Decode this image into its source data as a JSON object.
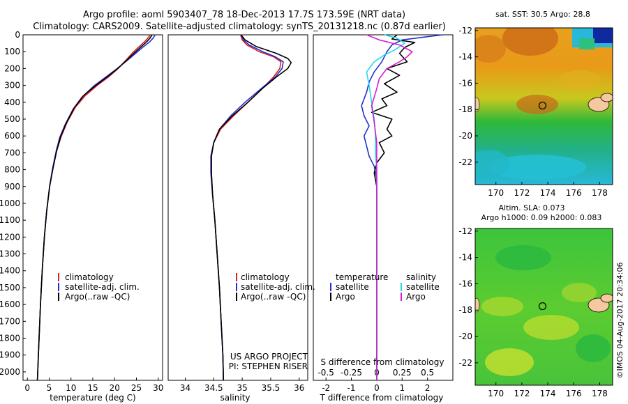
{
  "title": {
    "line1": "Argo profile: aoml 5903407_78 18-Dec-2013 17.7S 173.59E (NRT data)",
    "line2": "Climatology: CARS2009. Satellite-adjusted climatology: synTS_20131218.nc (0.87d earlier)"
  },
  "colors": {
    "climatology": "#e02020",
    "satellite": "#1f2fd0",
    "argo": "#000000",
    "salinity_satellite": "#22d8e8",
    "salinity_argo": "#d020d0"
  },
  "depth_axis": {
    "ylim": [
      0,
      2050
    ],
    "ticks": [
      0,
      100,
      200,
      300,
      400,
      500,
      600,
      700,
      800,
      900,
      1000,
      1100,
      1200,
      1300,
      1400,
      1500,
      1600,
      1700,
      1800,
      1900,
      2000
    ]
  },
  "legend": {
    "climatology": "climatology",
    "satellite_clim": "satellite-adj. clim.",
    "argo": "Argo(..raw -QC)",
    "diff_header_temperature": "temperature",
    "diff_header_salinity": "salinity",
    "diff_satellite": "satellite",
    "diff_argo": "Argo"
  },
  "credits": {
    "project": "US ARGO PROJECT",
    "pi": "PI: STEPHEN RISER"
  },
  "chart_data": [
    {
      "id": "temperature",
      "type": "line",
      "xlabel": "temperature (deg C)",
      "xlim": [
        -1,
        31
      ],
      "xticks": [
        0,
        5,
        10,
        15,
        20,
        25,
        30
      ],
      "ylabel": "depth",
      "ylim": [
        0,
        2050
      ],
      "series": [
        {
          "name": "climatology",
          "color": "#e02020",
          "points": [
            [
              28.2,
              0
            ],
            [
              27.6,
              20
            ],
            [
              26.9,
              40
            ],
            [
              25.4,
              75
            ],
            [
              24.0,
              110
            ],
            [
              22.6,
              150
            ],
            [
              20.8,
              200
            ],
            [
              18.6,
              250
            ],
            [
              16.0,
              300
            ],
            [
              13.3,
              360
            ],
            [
              11.0,
              430
            ],
            [
              9.1,
              520
            ],
            [
              7.8,
              600
            ],
            [
              6.8,
              680
            ],
            [
              5.9,
              780
            ],
            [
              5.1,
              900
            ],
            [
              4.4,
              1050
            ],
            [
              3.9,
              1200
            ],
            [
              3.4,
              1400
            ],
            [
              3.0,
              1600
            ],
            [
              2.6,
              1850
            ],
            [
              2.3,
              2050
            ]
          ]
        },
        {
          "name": "satellite-adj. clim.",
          "color": "#1f2fd0",
          "points": [
            [
              29.3,
              0
            ],
            [
              28.8,
              20
            ],
            [
              28.1,
              40
            ],
            [
              26.4,
              75
            ],
            [
              24.8,
              110
            ],
            [
              23.0,
              150
            ],
            [
              20.6,
              200
            ],
            [
              18.0,
              250
            ],
            [
              15.4,
              300
            ],
            [
              12.5,
              370
            ],
            [
              10.5,
              440
            ],
            [
              8.7,
              530
            ],
            [
              7.4,
              610
            ],
            [
              6.6,
              690
            ],
            [
              5.8,
              790
            ],
            [
              5.1,
              900
            ],
            [
              4.4,
              1050
            ],
            [
              3.9,
              1200
            ],
            [
              3.4,
              1400
            ],
            [
              3.0,
              1600
            ],
            [
              2.6,
              1850
            ],
            [
              2.3,
              2050
            ]
          ]
        },
        {
          "name": "Argo",
          "color": "#000000",
          "points": [
            [
              28.6,
              0
            ],
            [
              28.1,
              20
            ],
            [
              27.4,
              40
            ],
            [
              25.9,
              75
            ],
            [
              24.4,
              110
            ],
            [
              22.8,
              150
            ],
            [
              20.7,
              200
            ],
            [
              18.3,
              250
            ],
            [
              15.7,
              300
            ],
            [
              12.9,
              360
            ],
            [
              10.7,
              435
            ],
            [
              8.9,
              525
            ],
            [
              7.6,
              605
            ],
            [
              6.7,
              690
            ],
            [
              5.9,
              790
            ],
            [
              5.1,
              900
            ],
            [
              4.4,
              1050
            ],
            [
              3.9,
              1200
            ],
            [
              3.4,
              1400
            ],
            [
              3.0,
              1600
            ],
            [
              2.6,
              1850
            ],
            [
              2.3,
              2050
            ]
          ]
        }
      ]
    },
    {
      "id": "salinity",
      "type": "line",
      "xlabel": "salinity",
      "xlim": [
        33.7,
        36.15
      ],
      "xticks": [
        34,
        34.5,
        35,
        35.5,
        36
      ],
      "ylim": [
        0,
        2050
      ],
      "series": [
        {
          "name": "climatology",
          "color": "#e02020",
          "points": [
            [
              34.97,
              0
            ],
            [
              35.0,
              30
            ],
            [
              35.08,
              60
            ],
            [
              35.3,
              100
            ],
            [
              35.55,
              130
            ],
            [
              35.68,
              160
            ],
            [
              35.66,
              200
            ],
            [
              35.55,
              250
            ],
            [
              35.35,
              320
            ],
            [
              35.1,
              400
            ],
            [
              34.85,
              480
            ],
            [
              34.62,
              560
            ],
            [
              34.5,
              640
            ],
            [
              34.46,
              720
            ],
            [
              34.46,
              820
            ],
            [
              34.48,
              950
            ],
            [
              34.52,
              1100
            ],
            [
              34.56,
              1300
            ],
            [
              34.6,
              1500
            ],
            [
              34.63,
              1700
            ],
            [
              34.66,
              1900
            ],
            [
              34.67,
              2050
            ]
          ]
        },
        {
          "name": "satellite-adj. clim.",
          "color": "#1f2fd0",
          "points": [
            [
              34.98,
              0
            ],
            [
              35.02,
              30
            ],
            [
              35.12,
              60
            ],
            [
              35.36,
              100
            ],
            [
              35.58,
              130
            ],
            [
              35.72,
              160
            ],
            [
              35.7,
              200
            ],
            [
              35.58,
              250
            ],
            [
              35.33,
              320
            ],
            [
              35.05,
              400
            ],
            [
              34.8,
              480
            ],
            [
              34.6,
              560
            ],
            [
              34.5,
              640
            ],
            [
              34.45,
              720
            ],
            [
              34.45,
              820
            ],
            [
              34.48,
              950
            ],
            [
              34.52,
              1100
            ],
            [
              34.56,
              1300
            ],
            [
              34.6,
              1500
            ],
            [
              34.63,
              1700
            ],
            [
              34.66,
              1900
            ],
            [
              34.67,
              2050
            ]
          ]
        },
        {
          "name": "Argo",
          "color": "#000000",
          "points": [
            [
              34.98,
              0
            ],
            [
              35.05,
              30
            ],
            [
              35.25,
              70
            ],
            [
              35.6,
              110
            ],
            [
              35.8,
              140
            ],
            [
              35.86,
              165
            ],
            [
              35.8,
              200
            ],
            [
              35.6,
              250
            ],
            [
              35.35,
              320
            ],
            [
              35.1,
              400
            ],
            [
              34.83,
              480
            ],
            [
              34.6,
              560
            ],
            [
              34.5,
              640
            ],
            [
              34.46,
              720
            ],
            [
              34.46,
              820
            ],
            [
              34.48,
              950
            ],
            [
              34.52,
              1100
            ],
            [
              34.56,
              1300
            ],
            [
              34.6,
              1500
            ],
            [
              34.63,
              1700
            ],
            [
              34.66,
              1900
            ],
            [
              34.67,
              2050
            ]
          ]
        }
      ]
    },
    {
      "id": "differences",
      "type": "line",
      "xlabel": "T difference from climatology",
      "xlabel_top": "S difference from climatology",
      "xlim": [
        -2.5,
        3.0
      ],
      "xticks": [
        -2,
        -1,
        0,
        1,
        2
      ],
      "s_ticks": [
        {
          "label": "-0.5",
          "t": -2
        },
        {
          "label": "-0.25",
          "t": -1
        },
        {
          "label": "0",
          "t": 0
        },
        {
          "label": "0.25",
          "t": 1
        },
        {
          "label": "0.5",
          "t": 2
        }
      ],
      "ylim": [
        0,
        2050
      ],
      "series": [
        {
          "name": "T satellite",
          "color": "#1f2fd0",
          "points": [
            [
              2.6,
              0
            ],
            [
              1.8,
              15
            ],
            [
              1.0,
              30
            ],
            [
              0.6,
              60
            ],
            [
              0.4,
              100
            ],
            [
              0.2,
              160
            ],
            [
              -0.1,
              220
            ],
            [
              -0.3,
              280
            ],
            [
              -0.4,
              340
            ],
            [
              -0.6,
              420
            ],
            [
              -0.5,
              480
            ],
            [
              -0.3,
              540
            ],
            [
              -0.5,
              600
            ],
            [
              -0.4,
              660
            ],
            [
              -0.3,
              720
            ],
            [
              -0.1,
              780
            ],
            [
              0.0,
              850
            ],
            [
              0.0,
              1000
            ],
            [
              0.0,
              2050
            ]
          ]
        },
        {
          "name": "T Argo",
          "color": "#000000",
          "points": [
            [
              0.8,
              0
            ],
            [
              0.6,
              25
            ],
            [
              1.5,
              45
            ],
            [
              1.1,
              75
            ],
            [
              0.9,
              110
            ],
            [
              1.2,
              160
            ],
            [
              0.4,
              200
            ],
            [
              0.9,
              240
            ],
            [
              0.3,
              290
            ],
            [
              0.8,
              340
            ],
            [
              0.2,
              380
            ],
            [
              0.4,
              420
            ],
            [
              -0.2,
              460
            ],
            [
              0.6,
              500
            ],
            [
              0.4,
              560
            ],
            [
              0.6,
              600
            ],
            [
              0.1,
              640
            ],
            [
              0.3,
              700
            ],
            [
              0.0,
              760
            ],
            [
              -0.1,
              820
            ],
            [
              0.0,
              900
            ],
            [
              0.0,
              2050
            ]
          ]
        },
        {
          "name": "S satellite",
          "color": "#22d8e8",
          "points": [
            [
              0.3,
              0
            ],
            [
              0.8,
              20
            ],
            [
              1.1,
              50
            ],
            [
              0.7,
              90
            ],
            [
              0.3,
              120
            ],
            [
              -0.1,
              160
            ],
            [
              -0.4,
              220
            ],
            [
              -0.3,
              300
            ],
            [
              -0.2,
              400
            ],
            [
              -0.1,
              500
            ],
            [
              -0.05,
              600
            ],
            [
              -0.05,
              700
            ],
            [
              0.0,
              800
            ],
            [
              0.0,
              1000
            ],
            [
              0.0,
              2050
            ]
          ]
        },
        {
          "name": "S Argo",
          "color": "#d020d0",
          "points": [
            [
              -0.4,
              0
            ],
            [
              0.1,
              30
            ],
            [
              0.9,
              60
            ],
            [
              1.4,
              100
            ],
            [
              1.2,
              130
            ],
            [
              0.9,
              160
            ],
            [
              0.4,
              200
            ],
            [
              0.1,
              260
            ],
            [
              0.0,
              320
            ],
            [
              -0.2,
              420
            ],
            [
              -0.1,
              520
            ],
            [
              0.0,
              640
            ],
            [
              0.0,
              2050
            ]
          ]
        }
      ]
    },
    {
      "id": "sst_map",
      "type": "heatmap",
      "title": "sat. SST: 30.5   Argo: 28.8",
      "xlim": [
        168.4,
        179
      ],
      "ylim": [
        -23.7,
        -11.8
      ],
      "xticks": [
        170,
        172,
        174,
        176,
        178
      ],
      "yticks": [
        -12,
        -14,
        -16,
        -18,
        -20,
        -22
      ],
      "marker": {
        "lon": 173.59,
        "lat": -17.7
      }
    },
    {
      "id": "sla_map",
      "type": "heatmap",
      "title_line1": "Altim. SLA: 0.073",
      "title_line2": "Argo h1000: 0.09  h2000: 0.083",
      "xlim": [
        168.4,
        179
      ],
      "ylim": [
        -23.7,
        -11.8
      ],
      "xticks": [
        170,
        172,
        174,
        176,
        178
      ],
      "yticks": [
        -12,
        -14,
        -16,
        -18,
        -20,
        -22
      ],
      "marker": {
        "lon": 173.59,
        "lat": -17.7
      }
    }
  ],
  "watermark": "©IMOS 04-Aug-2017 20:34:06"
}
